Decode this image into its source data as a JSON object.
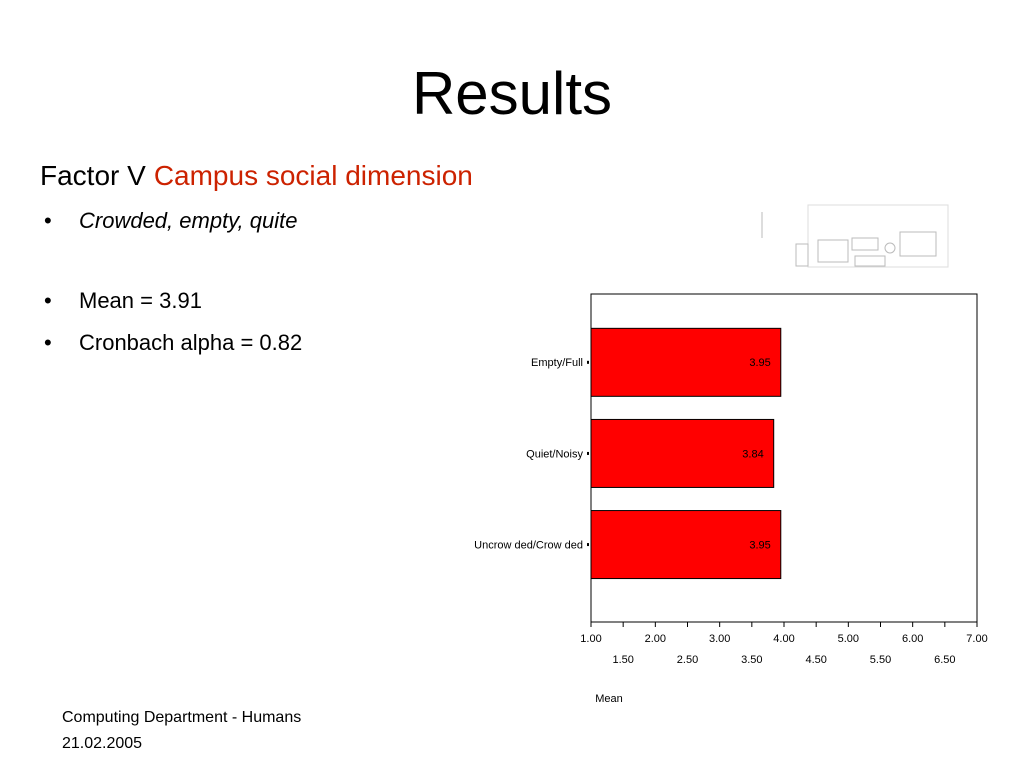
{
  "slide": {
    "title": "Results",
    "heading": {
      "lead": "Factor V",
      "highlight": "Campus social dimension"
    },
    "bullets": [
      "Crowded, empty, quite",
      "Mean =  3.91",
      "Cronbach alpha = 0.82"
    ],
    "footer": [
      "Computing Department - Humans",
      "21.02.2005"
    ]
  },
  "chart_data": {
    "type": "barh",
    "categories": [
      "Empty/Full",
      "Quiet/Noisy",
      "Uncrow ded/Crow ded"
    ],
    "values": [
      3.95,
      3.84,
      3.95
    ],
    "color": "#ff0000",
    "x_label": "Mean",
    "xlim": [
      1,
      7
    ],
    "xticks": [
      {
        "value": 1,
        "label": "1.00"
      },
      {
        "value": 1.5,
        "label": "1.50"
      },
      {
        "value": 2,
        "label": "2.00"
      },
      {
        "value": 2.5,
        "label": "2.50"
      },
      {
        "value": 3,
        "label": "3.00"
      },
      {
        "value": 3.5,
        "label": "3.50"
      },
      {
        "value": 4,
        "label": "4.00"
      },
      {
        "value": 4.5,
        "label": "4.50"
      },
      {
        "value": 5,
        "label": "5.00"
      },
      {
        "value": 5.5,
        "label": "5.50"
      },
      {
        "value": 6,
        "label": "6.00"
      },
      {
        "value": 6.5,
        "label": "6.50"
      },
      {
        "value": 7,
        "label": "7.00"
      }
    ]
  }
}
